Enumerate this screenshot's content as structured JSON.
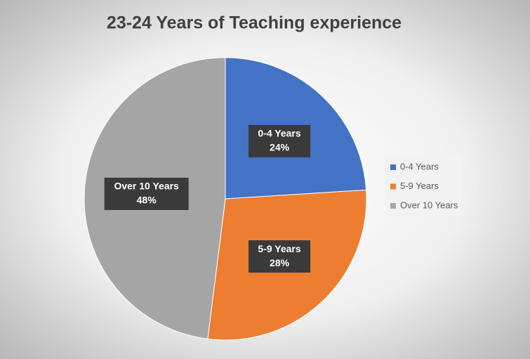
{
  "chart_data": {
    "type": "pie",
    "title": "23-24 Years of Teaching experience",
    "categories": [
      "0-4 Years",
      "5-9 Years",
      "Over 10 Years"
    ],
    "values": [
      24,
      28,
      48
    ],
    "value_labels": [
      "24%",
      "28%",
      "48%"
    ],
    "colors": [
      "#4472c4",
      "#ed7d31",
      "#a5a5a5"
    ],
    "legend": "right"
  }
}
